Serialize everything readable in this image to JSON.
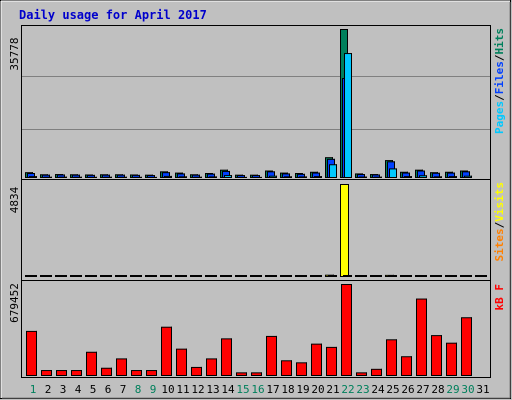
{
  "title": "Daily usage for April 2017",
  "colors": {
    "hits": "#00805c",
    "files": "#0040ff",
    "pages": "#00c8ff",
    "visits": "#ffff00",
    "sites": "#ff8000",
    "kbytes": "#ff0000",
    "weekday_label": "#000000",
    "weekend_label": "#00805c",
    "title": "#0000cc"
  },
  "chart_data": [
    {
      "type": "bar",
      "panel": "top",
      "ymax_label": "35778",
      "ylim": [
        0,
        35778
      ],
      "legend": [
        {
          "key": "pages",
          "label": "Pages"
        },
        {
          "key": "sep1",
          "label": "/"
        },
        {
          "key": "files",
          "label": "Files"
        },
        {
          "key": "sep2",
          "label": "/"
        },
        {
          "key": "hits",
          "label": "Hits"
        }
      ],
      "categories": [
        "1",
        "2",
        "3",
        "4",
        "5",
        "6",
        "7",
        "8",
        "9",
        "10",
        "11",
        "12",
        "13",
        "14",
        "15",
        "16",
        "17",
        "18",
        "19",
        "20",
        "21",
        "22",
        "23",
        "24",
        "25",
        "26",
        "27",
        "28",
        "29",
        "30",
        "31"
      ],
      "series": [
        {
          "key": "hits",
          "values": [
            1400,
            900,
            950,
            900,
            850,
            900,
            900,
            850,
            800,
            1600,
            1300,
            900,
            1200,
            2000,
            800,
            800,
            1800,
            1300,
            1200,
            1500,
            5000,
            35778,
            1100,
            950,
            4300,
            1500,
            2000,
            1400,
            1500,
            1800,
            0
          ]
        },
        {
          "key": "files",
          "values": [
            1200,
            800,
            850,
            800,
            750,
            800,
            800,
            750,
            700,
            1400,
            1100,
            800,
            1050,
            1700,
            700,
            700,
            1600,
            1100,
            1000,
            1300,
            4600,
            24000,
            950,
            850,
            4000,
            1300,
            1800,
            1250,
            1300,
            1600,
            0
          ]
        },
        {
          "key": "pages",
          "values": [
            450,
            300,
            320,
            300,
            280,
            300,
            300,
            280,
            260,
            500,
            400,
            300,
            380,
            700,
            260,
            260,
            550,
            400,
            380,
            450,
            3300,
            30000,
            350,
            320,
            2300,
            450,
            650,
            400,
            450,
            550,
            0
          ]
        }
      ]
    },
    {
      "type": "bar",
      "panel": "middle",
      "ymax_label": "4834",
      "ylim": [
        0,
        4834
      ],
      "legend": [
        {
          "key": "sites",
          "label": "Sites"
        },
        {
          "key": "sep",
          "label": "/"
        },
        {
          "key": "visits",
          "label": "Visits"
        }
      ],
      "categories": [
        "1",
        "2",
        "3",
        "4",
        "5",
        "6",
        "7",
        "8",
        "9",
        "10",
        "11",
        "12",
        "13",
        "14",
        "15",
        "16",
        "17",
        "18",
        "19",
        "20",
        "21",
        "22",
        "23",
        "24",
        "25",
        "26",
        "27",
        "28",
        "29",
        "30",
        "31"
      ],
      "series": [
        {
          "key": "visits",
          "values": [
            40,
            30,
            30,
            30,
            30,
            30,
            30,
            30,
            30,
            40,
            30,
            30,
            30,
            60,
            30,
            30,
            40,
            30,
            30,
            40,
            120,
            4834,
            40,
            40,
            110,
            30,
            40,
            40,
            40,
            40,
            0
          ]
        },
        {
          "key": "sites",
          "values": [
            35,
            25,
            25,
            25,
            25,
            25,
            25,
            25,
            25,
            35,
            25,
            25,
            25,
            50,
            25,
            25,
            35,
            25,
            25,
            35,
            80,
            60,
            30,
            30,
            60,
            25,
            35,
            30,
            30,
            30,
            0
          ]
        }
      ]
    },
    {
      "type": "bar",
      "panel": "bottom",
      "ymax_label": "679452",
      "ylim": [
        0,
        679452
      ],
      "legend": [
        {
          "key": "kbytes",
          "label": "kB F"
        }
      ],
      "categories": [
        "1",
        "2",
        "3",
        "4",
        "5",
        "6",
        "7",
        "8",
        "9",
        "10",
        "11",
        "12",
        "13",
        "14",
        "15",
        "16",
        "17",
        "18",
        "19",
        "20",
        "21",
        "22",
        "23",
        "24",
        "25",
        "26",
        "27",
        "28",
        "29",
        "30",
        "31"
      ],
      "weekend_days": [
        "1",
        "8",
        "9",
        "15",
        "16",
        "22",
        "23",
        "29",
        "30"
      ],
      "series": [
        {
          "key": "kbytes",
          "values": [
            333000,
            44000,
            44000,
            44000,
            179000,
            61000,
            130000,
            44000,
            44000,
            364000,
            202000,
            67000,
            130000,
            278000,
            27000,
            27000,
            296000,
            116000,
            101000,
            239000,
            215000,
            679452,
            27000,
            53000,
            271000,
            146000,
            572000,
            302000,
            246000,
            434000,
            0
          ]
        }
      ]
    }
  ]
}
